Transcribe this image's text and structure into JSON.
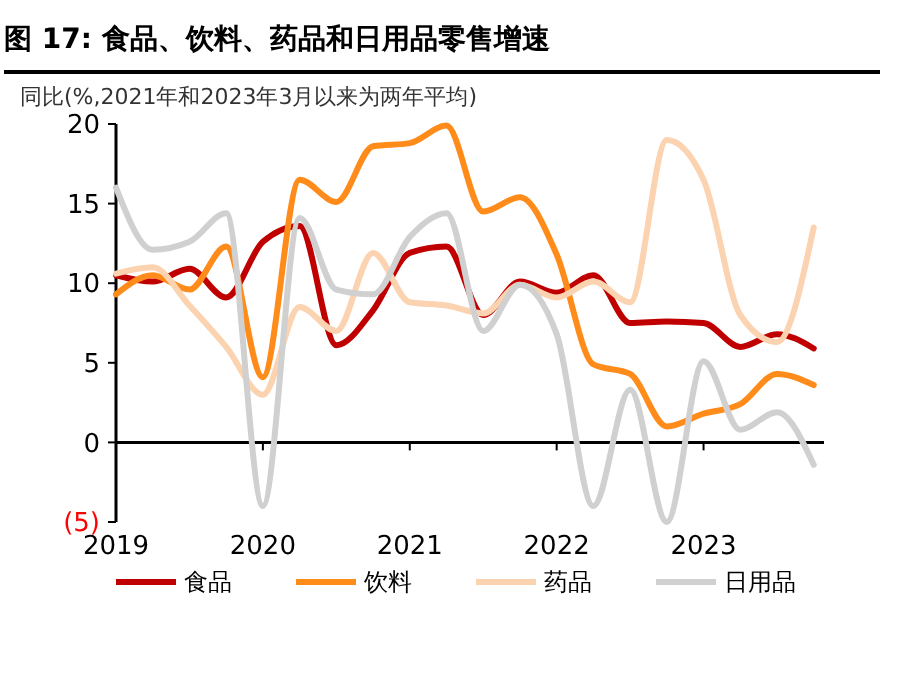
{
  "chart_data": {
    "type": "line",
    "title": "图 17: 食品、饮料、药品和日用品零售增速",
    "ylabel": "同比(%,2021年和2023年3月以来为两年平均)",
    "x": [
      2019,
      2019.25,
      2019.5,
      2019.75,
      2020,
      2020.25,
      2020.5,
      2020.75,
      2021,
      2021.25,
      2021.5,
      2021.75,
      2022,
      2022.25,
      2022.5,
      2022.75,
      2023,
      2023.25,
      2023.5,
      2023.75
    ],
    "series": [
      {
        "name": "食品",
        "color": "#c00000",
        "values": [
          10.5,
          10.1,
          10.9,
          9.1,
          12.6,
          13.6,
          6.1,
          8.3,
          11.9,
          12.3,
          8,
          10.1,
          9.4,
          10.5,
          7.5,
          7.6,
          7.5,
          6,
          6.8,
          5.9
        ]
      },
      {
        "name": "饮料",
        "color": "#ff8c1a",
        "values": [
          9.3,
          10.5,
          9.6,
          12.3,
          4.1,
          16.5,
          15.1,
          18.6,
          18.8,
          19.9,
          14.5,
          15.4,
          11.8,
          4.9,
          4.3,
          1,
          1.8,
          2.4,
          4.3,
          3.6
        ]
      },
      {
        "name": "药品",
        "color": "#fbd3b0",
        "values": [
          10.6,
          11,
          8.6,
          6,
          3,
          8.5,
          7,
          11.9,
          8.8,
          8.6,
          8.1,
          9.9,
          9.1,
          10.1,
          8.8,
          19,
          16.5,
          8,
          6.3,
          13.5
        ]
      },
      {
        "name": "日用品",
        "color": "#d0d0d0",
        "values": [
          16,
          12.1,
          12.6,
          14.4,
          -4,
          14.1,
          9.6,
          9.3,
          12.9,
          14.4,
          7,
          9.9,
          6.8,
          -4,
          3.3,
          -5,
          5.1,
          0.8,
          1.9,
          -1.4
        ]
      }
    ],
    "xlim": [
      2019,
      2023.82
    ],
    "xticks": [
      2019,
      2020,
      2021,
      2022,
      2023
    ],
    "ylim": [
      -5,
      20
    ],
    "yticks": [
      20,
      15,
      10,
      5,
      0,
      {
        "value": -5,
        "label": "(5)"
      }
    ],
    "legend": "bottom",
    "line_style": "solid",
    "marker": "none"
  }
}
